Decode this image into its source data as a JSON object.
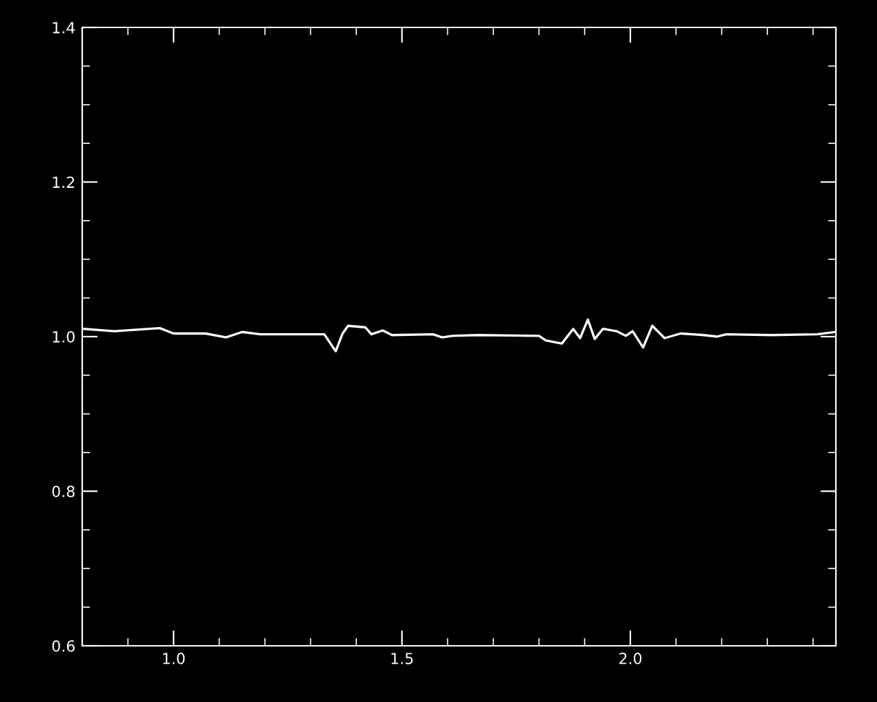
{
  "chart_data": {
    "type": "line",
    "x": [
      0.803,
      0.87,
      0.97,
      1.0,
      1.07,
      1.115,
      1.15,
      1.19,
      1.27,
      1.33,
      1.355,
      1.37,
      1.382,
      1.42,
      1.433,
      1.458,
      1.478,
      1.568,
      1.588,
      1.611,
      1.668,
      1.8,
      1.815,
      1.85,
      1.875,
      1.89,
      1.907,
      1.922,
      1.94,
      1.97,
      1.99,
      2.005,
      2.028,
      2.048,
      2.075,
      2.11,
      2.16,
      2.19,
      2.21,
      2.309,
      2.409,
      2.449
    ],
    "series": [
      {
        "color": "#ffffff",
        "values": [
          1.01,
          1.007,
          1.011,
          1.004,
          1.004,
          0.999,
          1.006,
          1.003,
          1.003,
          1.003,
          0.981,
          1.004,
          1.014,
          1.012,
          1.003,
          1.008,
          1.002,
          1.003,
          0.999,
          1.001,
          1.002,
          1.001,
          0.995,
          0.991,
          1.01,
          0.998,
          1.022,
          0.997,
          1.01,
          1.007,
          1.001,
          1.007,
          0.986,
          1.014,
          0.998,
          1.004,
          1.002,
          1.0,
          1.003,
          1.002,
          1.003,
          1.006
        ]
      }
    ],
    "xlim": [
      0.8,
      2.45
    ],
    "ylim": [
      0.6,
      1.4
    ],
    "xticks": [
      {
        "value": 1,
        "label": "1.0"
      },
      1.5,
      {
        "value": 2,
        "label": "2.0"
      }
    ],
    "yticks": [
      0.6,
      0.8,
      {
        "value": 1,
        "label": "1.0"
      },
      1.2,
      1.4
    ],
    "grid": false,
    "marker": "none",
    "line_style": "solid"
  }
}
